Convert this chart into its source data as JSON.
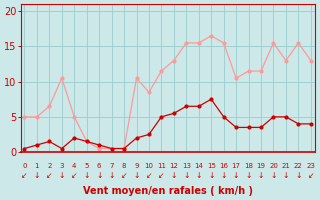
{
  "hours": [
    0,
    1,
    2,
    3,
    4,
    5,
    6,
    7,
    8,
    9,
    10,
    11,
    12,
    13,
    14,
    15,
    16,
    17,
    18,
    19,
    20,
    21,
    22,
    23
  ],
  "wind_avg": [
    0.5,
    1.0,
    1.5,
    0.5,
    2.0,
    1.5,
    1.0,
    0.5,
    0.5,
    2.0,
    2.5,
    5.0,
    5.5,
    6.5,
    6.5,
    7.5,
    5.0,
    3.5,
    3.5,
    3.5,
    5.0,
    5.0,
    4.0,
    4.0
  ],
  "wind_gust": [
    5.0,
    5.0,
    6.5,
    10.5,
    5.0,
    1.5,
    0.5,
    0.5,
    0.5,
    10.5,
    8.5,
    11.5,
    13.0,
    15.5,
    15.5,
    16.5,
    15.5,
    10.5,
    11.5,
    11.5,
    15.5,
    13.0,
    15.5,
    13.0
  ],
  "avg_color": "#cc0000",
  "gust_color": "#ff9999",
  "bg_color": "#cce8e8",
  "grid_color": "#99cccc",
  "axis_color": "#cc0000",
  "spine_color": "#cc0000",
  "ylabel_values": [
    0,
    5,
    10,
    15,
    20
  ],
  "ylim": [
    0,
    21
  ],
  "xlim": [
    -0.3,
    23.3
  ],
  "xlabel": "Vent moyen/en rafales ( km/h )",
  "xlabel_fontsize": 7,
  "ytick_fontsize": 7,
  "xtick_fontsize": 5,
  "arrow_chars": [
    "↙",
    "↓",
    "↙",
    "↓",
    "↙",
    "↓",
    "↓",
    "↓",
    "↙",
    "↓",
    "↙",
    "↙",
    "↓",
    "↓",
    "↓",
    "↓",
    "↓",
    "↓",
    "↓",
    "↓",
    "↓",
    "↓",
    "↓",
    "↙"
  ]
}
